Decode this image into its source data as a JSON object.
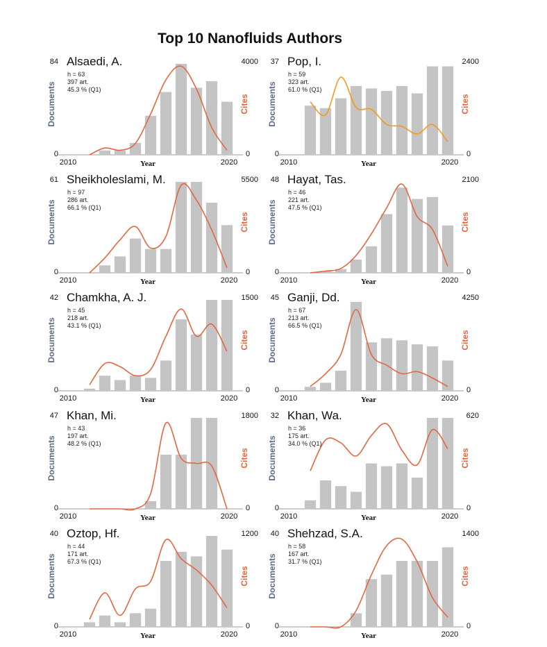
{
  "figure_title": "Top 10 Nanofluids Authors",
  "colors": {
    "bar": "#c4c4c4",
    "line": "#e5663f",
    "line_alt": "#f39a1e",
    "docs_label": "#5b6a86",
    "cites_label": "#e2663f"
  },
  "chart_data": [
    {
      "type": "bar",
      "author": "Alsaedi, A.",
      "stats": [
        "h = 63",
        "397 art.",
        "45.3 % (Q1)"
      ],
      "xlabel": "Year",
      "ylabel_left": "Documents",
      "ylabel_right": "Cites",
      "x_ticks": [
        "2010",
        "2020"
      ],
      "left_axis": {
        "min": "0",
        "max": "84",
        "range": [
          0,
          84
        ]
      },
      "right_axis": {
        "min": "0",
        "max": "4000",
        "range": [
          0,
          4000
        ]
      },
      "years": [
        2011,
        2012,
        2013,
        2014,
        2015,
        2016,
        2017,
        2018,
        2019,
        2020
      ],
      "series": [
        {
          "name": "Documents",
          "values": [
            0,
            4,
            4,
            11,
            36,
            58,
            84,
            62,
            68,
            49
          ]
        },
        {
          "name": "Cites",
          "values": [
            0,
            300,
            200,
            500,
            1800,
            3300,
            3900,
            2900,
            1200,
            200
          ]
        }
      ]
    },
    {
      "type": "bar",
      "author": "Pop, I.",
      "stats": [
        "h = 59",
        "323 art.",
        "61.0 % (Q1)"
      ],
      "xlabel": "Year",
      "ylabel_left": "Documents",
      "ylabel_right": "Cites",
      "x_ticks": [
        "2010",
        "2020"
      ],
      "left_axis": {
        "min": "0",
        "max": "37",
        "range": [
          0,
          37
        ]
      },
      "right_axis": {
        "min": "0",
        "max": "2400",
        "range": [
          0,
          2400
        ]
      },
      "years": [
        2011,
        2012,
        2013,
        2014,
        2015,
        2016,
        2017,
        2018,
        2019,
        2020
      ],
      "series": [
        {
          "name": "Documents",
          "values": [
            20,
            19,
            23,
            28,
            27,
            26,
            28,
            25,
            36,
            36
          ]
        },
        {
          "name": "Cites",
          "values": [
            1400,
            1050,
            2050,
            1250,
            1200,
            800,
            750,
            550,
            800,
            350
          ]
        }
      ]
    },
    {
      "type": "bar",
      "author": "Sheikholeslami, M.",
      "stats": [
        "h = 97",
        "286 art.",
        "66.1 % (Q1)"
      ],
      "xlabel": "Year",
      "ylabel_left": "Documents",
      "ylabel_right": "Cites",
      "x_ticks": [
        "2010",
        "2020"
      ],
      "left_axis": {
        "min": "0",
        "max": "61",
        "range": [
          0,
          61
        ]
      },
      "right_axis": {
        "min": "0",
        "max": "5500",
        "range": [
          0,
          5500
        ]
      },
      "years": [
        2011,
        2012,
        2013,
        2014,
        2015,
        2016,
        2017,
        2018,
        2019,
        2020
      ],
      "series": [
        {
          "name": "Documents",
          "values": [
            0,
            5,
            11,
            23,
            16,
            16,
            61,
            61,
            47,
            32
          ]
        },
        {
          "name": "Cites",
          "values": [
            0,
            900,
            2000,
            2800,
            1500,
            2200,
            5300,
            4400,
            2600,
            300
          ]
        }
      ]
    },
    {
      "type": "bar",
      "author": "Hayat, Tas.",
      "stats": [
        "h = 46",
        "221 art.",
        "47.5 % (Q1)"
      ],
      "xlabel": "Year",
      "ylabel_left": "Documents",
      "ylabel_right": "Cites",
      "x_ticks": [
        "2010",
        "2020"
      ],
      "left_axis": {
        "min": "0",
        "max": "48",
        "range": [
          0,
          48
        ]
      },
      "right_axis": {
        "min": "0",
        "max": "2100",
        "range": [
          0,
          2100
        ]
      },
      "years": [
        2011,
        2012,
        2013,
        2014,
        2015,
        2016,
        2017,
        2018,
        2019,
        2020
      ],
      "series": [
        {
          "name": "Documents",
          "values": [
            0,
            1,
            2,
            7,
            14,
            31,
            45,
            39,
            40,
            25
          ]
        },
        {
          "name": "Cites",
          "values": [
            0,
            40,
            100,
            400,
            900,
            1500,
            2050,
            1300,
            1000,
            150
          ]
        }
      ]
    },
    {
      "type": "bar",
      "author": "Chamkha, A. J.",
      "stats": [
        "h = 45",
        "218 art.",
        "43.1 % (Q1)"
      ],
      "xlabel": "Year",
      "ylabel_left": "Documents",
      "ylabel_right": "Cites",
      "x_ticks": [
        "2010",
        "2020"
      ],
      "left_axis": {
        "min": "0",
        "max": "42",
        "range": [
          0,
          42
        ]
      },
      "right_axis": {
        "min": "0",
        "max": "1500",
        "range": [
          0,
          1500
        ]
      },
      "years": [
        2011,
        2012,
        2013,
        2014,
        2015,
        2016,
        2017,
        2018,
        2019,
        2020
      ],
      "series": [
        {
          "name": "Documents",
          "values": [
            1,
            7,
            5,
            7,
            6,
            14,
            33,
            26,
            42,
            42
          ]
        },
        {
          "name": "Cites",
          "values": [
            100,
            450,
            400,
            250,
            350,
            900,
            1350,
            900,
            1100,
            650
          ]
        }
      ]
    },
    {
      "type": "bar",
      "author": "Ganji, Dd.",
      "stats": [
        "h = 67",
        "213 art.",
        "66.5 % (Q1)"
      ],
      "xlabel": "Year",
      "ylabel_left": "Documents",
      "ylabel_right": "Cites",
      "x_ticks": [
        "2010",
        "2020"
      ],
      "left_axis": {
        "min": "0",
        "max": "45",
        "range": [
          0,
          45
        ]
      },
      "right_axis": {
        "min": "0",
        "max": "4250",
        "range": [
          0,
          4250
        ]
      },
      "years": [
        2011,
        2012,
        2013,
        2014,
        2015,
        2016,
        2017,
        2018,
        2019,
        2020
      ],
      "series": [
        {
          "name": "Documents",
          "values": [
            2,
            4,
            10,
            44,
            24,
            26,
            25,
            23,
            22,
            15
          ]
        },
        {
          "name": "Cites",
          "values": [
            200,
            800,
            1700,
            3800,
            1700,
            1200,
            800,
            900,
            600,
            200
          ]
        }
      ]
    },
    {
      "type": "bar",
      "author": "Khan, Mi.",
      "stats": [
        "h = 43",
        "197 art.",
        "48.2 % (Q1)"
      ],
      "xlabel": "Year",
      "ylabel_left": "Documents",
      "ylabel_right": "Cites",
      "x_ticks": [
        "2010",
        "2020"
      ],
      "left_axis": {
        "min": "0",
        "max": "47",
        "range": [
          0,
          47
        ]
      },
      "right_axis": {
        "min": "0",
        "max": "1800",
        "range": [
          0,
          1800
        ]
      },
      "years": [
        2011,
        2012,
        2013,
        2014,
        2015,
        2016,
        2017,
        2018,
        2019,
        2020
      ],
      "series": [
        {
          "name": "Documents",
          "values": [
            0,
            0,
            0,
            0,
            4,
            28,
            28,
            47,
            47,
            0
          ]
        },
        {
          "name": "Cites",
          "values": [
            0,
            0,
            0,
            0,
            300,
            1700,
            1000,
            900,
            850,
            0
          ]
        }
      ]
    },
    {
      "type": "bar",
      "author": "Khan, Wa.",
      "stats": [
        "h = 36",
        "175 art.",
        "34.0 % (Q1)"
      ],
      "xlabel": "Year",
      "ylabel_left": "Documents",
      "ylabel_right": "Cites",
      "x_ticks": [
        "2010",
        "2020"
      ],
      "left_axis": {
        "min": "0",
        "max": "32",
        "range": [
          0,
          32
        ]
      },
      "right_axis": {
        "min": "0",
        "max": "620",
        "range": [
          0,
          620
        ]
      },
      "years": [
        2011,
        2012,
        2013,
        2014,
        2015,
        2016,
        2017,
        2018,
        2019,
        2020
      ],
      "series": [
        {
          "name": "Documents",
          "values": [
            3,
            10,
            8,
            6,
            16,
            15,
            16,
            11,
            32,
            32
          ]
        },
        {
          "name": "Cites",
          "values": [
            260,
            470,
            450,
            360,
            500,
            580,
            400,
            300,
            540,
            410
          ]
        }
      ]
    },
    {
      "type": "bar",
      "author": "Oztop, Hf.",
      "stats": [
        "h = 44",
        "171 art.",
        "67.3 % (Q1)"
      ],
      "xlabel": "Year",
      "ylabel_left": "Documents",
      "ylabel_right": "Cites",
      "x_ticks": [
        "2010",
        "2020"
      ],
      "left_axis": {
        "min": "0",
        "max": "40",
        "range": [
          0,
          40
        ]
      },
      "right_axis": {
        "min": "0",
        "max": "1200",
        "range": [
          0,
          1200
        ]
      },
      "years": [
        2011,
        2012,
        2013,
        2014,
        2015,
        2016,
        2017,
        2018,
        2019,
        2020
      ],
      "series": [
        {
          "name": "Documents",
          "values": [
            2,
            5,
            2,
            6,
            8,
            29,
            33,
            31,
            40,
            34
          ]
        },
        {
          "name": "Cites",
          "values": [
            100,
            450,
            150,
            500,
            600,
            1150,
            900,
            750,
            550,
            250
          ]
        }
      ]
    },
    {
      "type": "bar",
      "author": "Shehzad, S.A.",
      "stats": [
        "h = 58",
        "167 art.",
        "31.7 % (Q1)"
      ],
      "xlabel": "Year",
      "ylabel_left": "Documents",
      "ylabel_right": "Cites",
      "x_ticks": [
        "2010",
        "2020"
      ],
      "left_axis": {
        "min": "0",
        "max": "40",
        "range": [
          0,
          40
        ]
      },
      "right_axis": {
        "min": "0",
        "max": "1400",
        "range": [
          0,
          1400
        ]
      },
      "years": [
        2011,
        2012,
        2013,
        2014,
        2015,
        2016,
        2017,
        2018,
        2019,
        2020
      ],
      "series": [
        {
          "name": "Documents",
          "values": [
            0,
            0,
            0,
            6,
            21,
            23,
            29,
            29,
            29,
            35
          ]
        },
        {
          "name": "Cites",
          "values": [
            0,
            0,
            0,
            250,
            800,
            1250,
            1350,
            1000,
            450,
            150
          ]
        }
      ]
    }
  ]
}
